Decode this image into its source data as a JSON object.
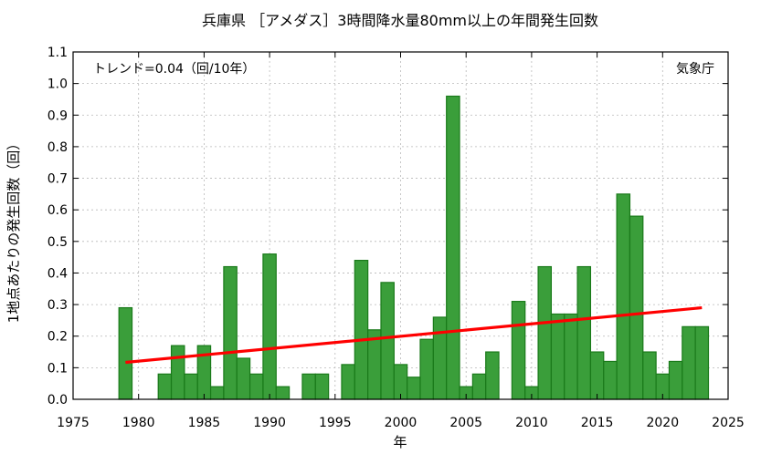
{
  "chart_data": {
    "type": "bar",
    "title": "兵庫県 ［アメダス］3時間降水量80mm以上の年間発生回数",
    "xlabel": "年",
    "ylabel": "1地点あたりの発生回数（回）",
    "xlim": [
      1975,
      2025
    ],
    "ylim": [
      0.0,
      1.1
    ],
    "xticks": [
      "1975",
      "1980",
      "1985",
      "1990",
      "1995",
      "2000",
      "2005",
      "2010",
      "2015",
      "2020",
      "2025"
    ],
    "yticks": [
      "0.0",
      "0.1",
      "0.2",
      "0.3",
      "0.4",
      "0.5",
      "0.6",
      "0.7",
      "0.8",
      "0.9",
      "1.0",
      "1.1"
    ],
    "trend_label": "トレンド=0.04（回/10年）",
    "source_label": "気象庁",
    "bar_color": "#3a9e3a",
    "bar_edge_color": "#1a7a1a",
    "trend_color": "#ff0000",
    "grid": true,
    "years": [
      1976,
      1977,
      1978,
      1979,
      1980,
      1981,
      1982,
      1983,
      1984,
      1985,
      1986,
      1987,
      1988,
      1989,
      1990,
      1991,
      1992,
      1993,
      1994,
      1995,
      1996,
      1997,
      1998,
      1999,
      2000,
      2001,
      2002,
      2003,
      2004,
      2005,
      2006,
      2007,
      2008,
      2009,
      2010,
      2011,
      2012,
      2013,
      2014,
      2015,
      2016,
      2017,
      2018,
      2019,
      2020,
      2021,
      2022,
      2023
    ],
    "values": [
      0,
      0,
      0,
      0.29,
      0,
      0,
      0.08,
      0.17,
      0.08,
      0.17,
      0.04,
      0.42,
      0.13,
      0.08,
      0.46,
      0.04,
      0,
      0.08,
      0.08,
      0,
      0.11,
      0.44,
      0.22,
      0.37,
      0.11,
      0.07,
      0.19,
      0.26,
      0.96,
      0.04,
      0.08,
      0.15,
      0,
      0.31,
      0.04,
      0.42,
      0.27,
      0.27,
      0.42,
      0.15,
      0.12,
      0.65,
      0.58,
      0.15,
      0.08,
      0.12,
      0.23,
      0.23
    ],
    "trend": {
      "x": [
        1979,
        2023
      ],
      "y": [
        0.117,
        0.29
      ]
    }
  }
}
